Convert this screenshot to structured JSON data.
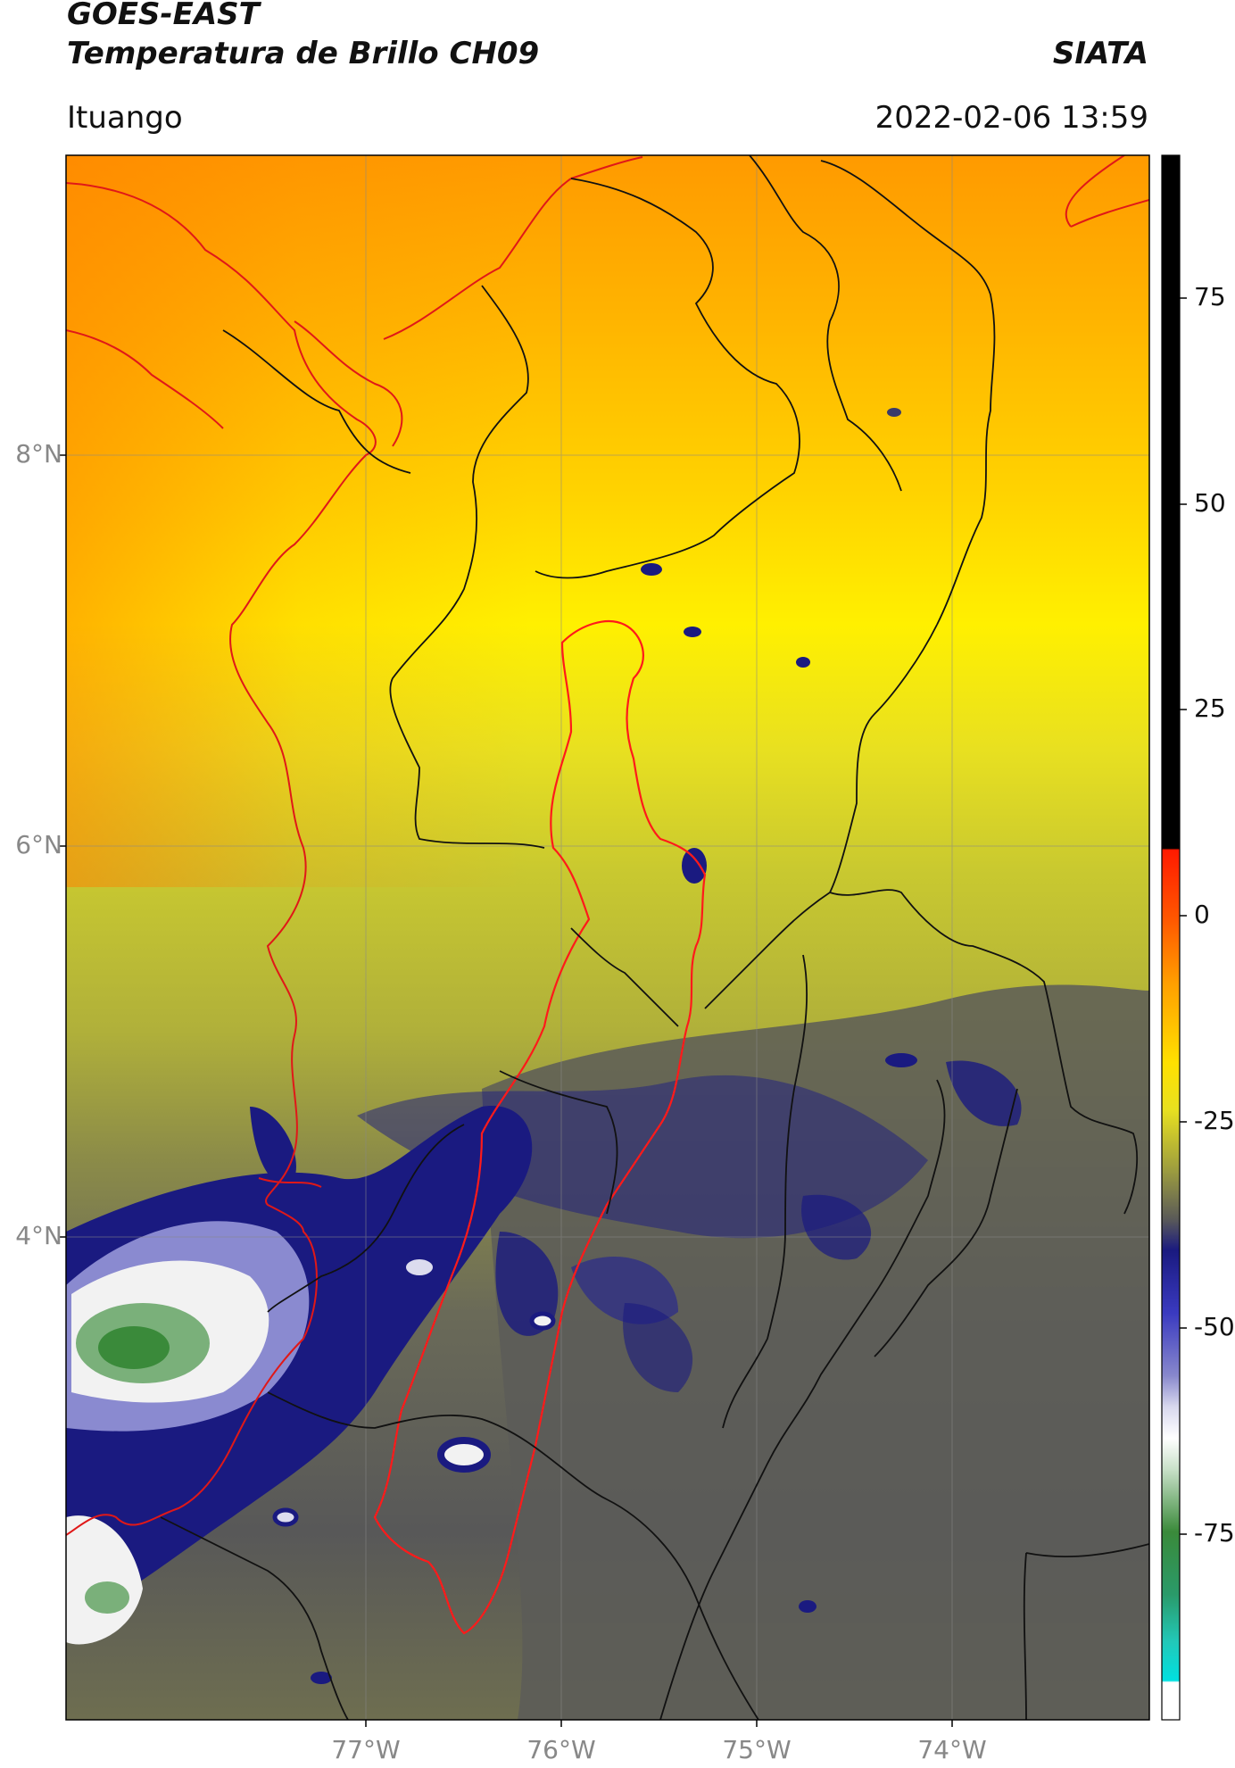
{
  "header": {
    "satellite": "GOES-EAST",
    "product": "Temperatura de Brillo CH09",
    "brand": "SIATA",
    "region": "Ituango",
    "timestamp": "2022-02-06 13:59"
  },
  "map": {
    "lat_labels": [
      "8°N",
      "6°N",
      "4°N"
    ],
    "lon_labels": [
      "77°W",
      "76°W",
      "75°W",
      "74°W"
    ],
    "lat_range": [
      2.15,
      9.5
    ],
    "lon_range": [
      -78.55,
      -73.0
    ],
    "field": "brightness temperature (°C)"
  },
  "colorbar": {
    "ticks": [
      "75",
      "50",
      "25",
      "0",
      "-25",
      "-50",
      "-75"
    ],
    "range": [
      -90,
      90
    ],
    "colors": {
      "black": "#000000",
      "red": "#ff1a00",
      "orange": "#ff8c00",
      "yellow": "#ffe600",
      "olive": "#a8a830",
      "gray": "#5a5a58",
      "navy": "#1a1a80",
      "white": "#f4f4f4",
      "green": "#3a8a3a",
      "cyan": "#22dddd"
    }
  }
}
